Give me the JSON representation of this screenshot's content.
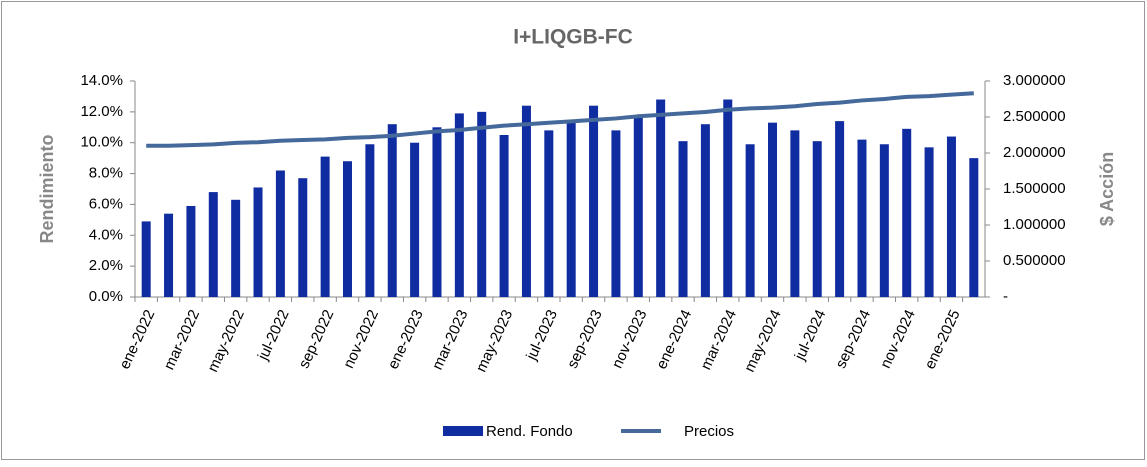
{
  "chart_data": {
    "type": "bar_line",
    "title": "I+LIQGB-FC",
    "y_label": "Rendimiento",
    "y2_label": "$ Acción",
    "categories": [
      "ene-2022",
      null,
      "mar-2022",
      null,
      "may-2022",
      null,
      "jul-2022",
      null,
      "sep-2022",
      null,
      "nov-2022",
      null,
      "ene-2023",
      null,
      "mar-2023",
      null,
      "may-2023",
      null,
      "jul-2023",
      null,
      "sep-2023",
      null,
      "nov-2023",
      null,
      "ene-2024",
      null,
      "mar-2024",
      null,
      "may-2024",
      null,
      "jul-2024",
      null,
      "sep-2024",
      null,
      "nov-2024",
      null,
      "ene-2025",
      null
    ],
    "series": [
      {
        "name": "Rend. Fondo",
        "type": "bar",
        "color": "#0f2ca0",
        "values": [
          4.9,
          5.4,
          5.9,
          6.8,
          6.3,
          7.1,
          8.2,
          7.7,
          9.1,
          8.8,
          9.9,
          11.2,
          10.0,
          11.0,
          11.9,
          12.0,
          10.5,
          12.4,
          10.8,
          11.4,
          12.4,
          10.8,
          11.7,
          12.8,
          10.1,
          11.2,
          12.8,
          9.9,
          11.3,
          10.8,
          10.1,
          11.4,
          10.2,
          9.9,
          10.9,
          9.7,
          10.4,
          9.0
        ]
      },
      {
        "name": "Precios",
        "type": "line",
        "axis": "y2",
        "color": "#44699a",
        "values": [
          2.1,
          2.1,
          2.11,
          2.12,
          2.14,
          2.15,
          2.17,
          2.18,
          2.19,
          2.21,
          2.22,
          2.24,
          2.27,
          2.3,
          2.32,
          2.35,
          2.38,
          2.4,
          2.42,
          2.44,
          2.46,
          2.48,
          2.51,
          2.53,
          2.55,
          2.57,
          2.6,
          2.62,
          2.63,
          2.65,
          2.68,
          2.7,
          2.73,
          2.75,
          2.78,
          2.79,
          2.81,
          2.83
        ]
      }
    ],
    "ylim": [
      0,
      14
    ],
    "yticks": [
      {
        "value": 0,
        "label": "0.0%"
      },
      {
        "value": 2,
        "label": "2.0%"
      },
      {
        "value": 4,
        "label": "4.0%"
      },
      {
        "value": 6,
        "label": "6.0%"
      },
      {
        "value": 8,
        "label": "8.0%"
      },
      {
        "value": 10,
        "label": "10.0%"
      },
      {
        "value": 12,
        "label": "12.0%"
      },
      {
        "value": 14,
        "label": "14.0%"
      }
    ],
    "y2lim": [
      0,
      3
    ],
    "y2ticks": [
      {
        "value": 0,
        "label": "-"
      },
      {
        "value": 0.5,
        "label": "0.500000"
      },
      {
        "value": 1,
        "label": "1.000000"
      },
      {
        "value": 1.5,
        "label": "1.500000"
      },
      {
        "value": 2,
        "label": "2.000000"
      },
      {
        "value": 2.5,
        "label": "2.500000"
      },
      {
        "value": 3,
        "label": "3.000000"
      }
    ],
    "legend": "bottom",
    "grid": false
  }
}
